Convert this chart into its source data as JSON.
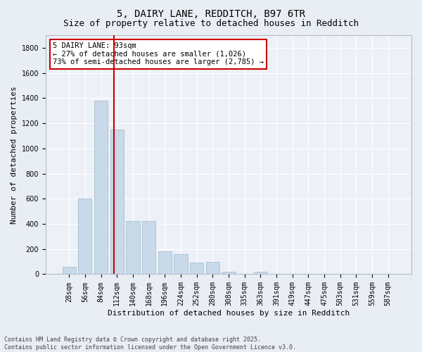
{
  "title1": "5, DAIRY LANE, REDDITCH, B97 6TR",
  "title2": "Size of property relative to detached houses in Redditch",
  "xlabel": "Distribution of detached houses by size in Redditch",
  "ylabel": "Number of detached properties",
  "bar_labels": [
    "28sqm",
    "56sqm",
    "84sqm",
    "112sqm",
    "140sqm",
    "168sqm",
    "196sqm",
    "224sqm",
    "252sqm",
    "280sqm",
    "308sqm",
    "335sqm",
    "363sqm",
    "391sqm",
    "419sqm",
    "447sqm",
    "475sqm",
    "503sqm",
    "531sqm",
    "559sqm",
    "587sqm"
  ],
  "bar_values": [
    60,
    600,
    1380,
    1150,
    420,
    420,
    180,
    160,
    90,
    100,
    20,
    0,
    20,
    0,
    0,
    0,
    0,
    0,
    0,
    0,
    0
  ],
  "bar_color": "#c8d9ea",
  "bar_edge_color": "#9db8cc",
  "ylim": [
    0,
    1900
  ],
  "yticks": [
    0,
    200,
    400,
    600,
    800,
    1000,
    1200,
    1400,
    1600,
    1800
  ],
  "vline_color": "#cc0000",
  "annotation_text": "5 DAIRY LANE: 93sqm\n← 27% of detached houses are smaller (1,026)\n73% of semi-detached houses are larger (2,785) →",
  "annotation_box_color": "#ffffff",
  "annotation_box_edge": "#cc0000",
  "bg_color": "#e8eef4",
  "plot_bg_color": "#edf1f7",
  "grid_color": "#ffffff",
  "footnote": "Contains HM Land Registry data © Crown copyright and database right 2025.\nContains public sector information licensed under the Open Government Licence v3.0.",
  "title1_fontsize": 10,
  "title2_fontsize": 9,
  "label_fontsize": 8,
  "tick_fontsize": 7,
  "annot_fontsize": 7.5
}
